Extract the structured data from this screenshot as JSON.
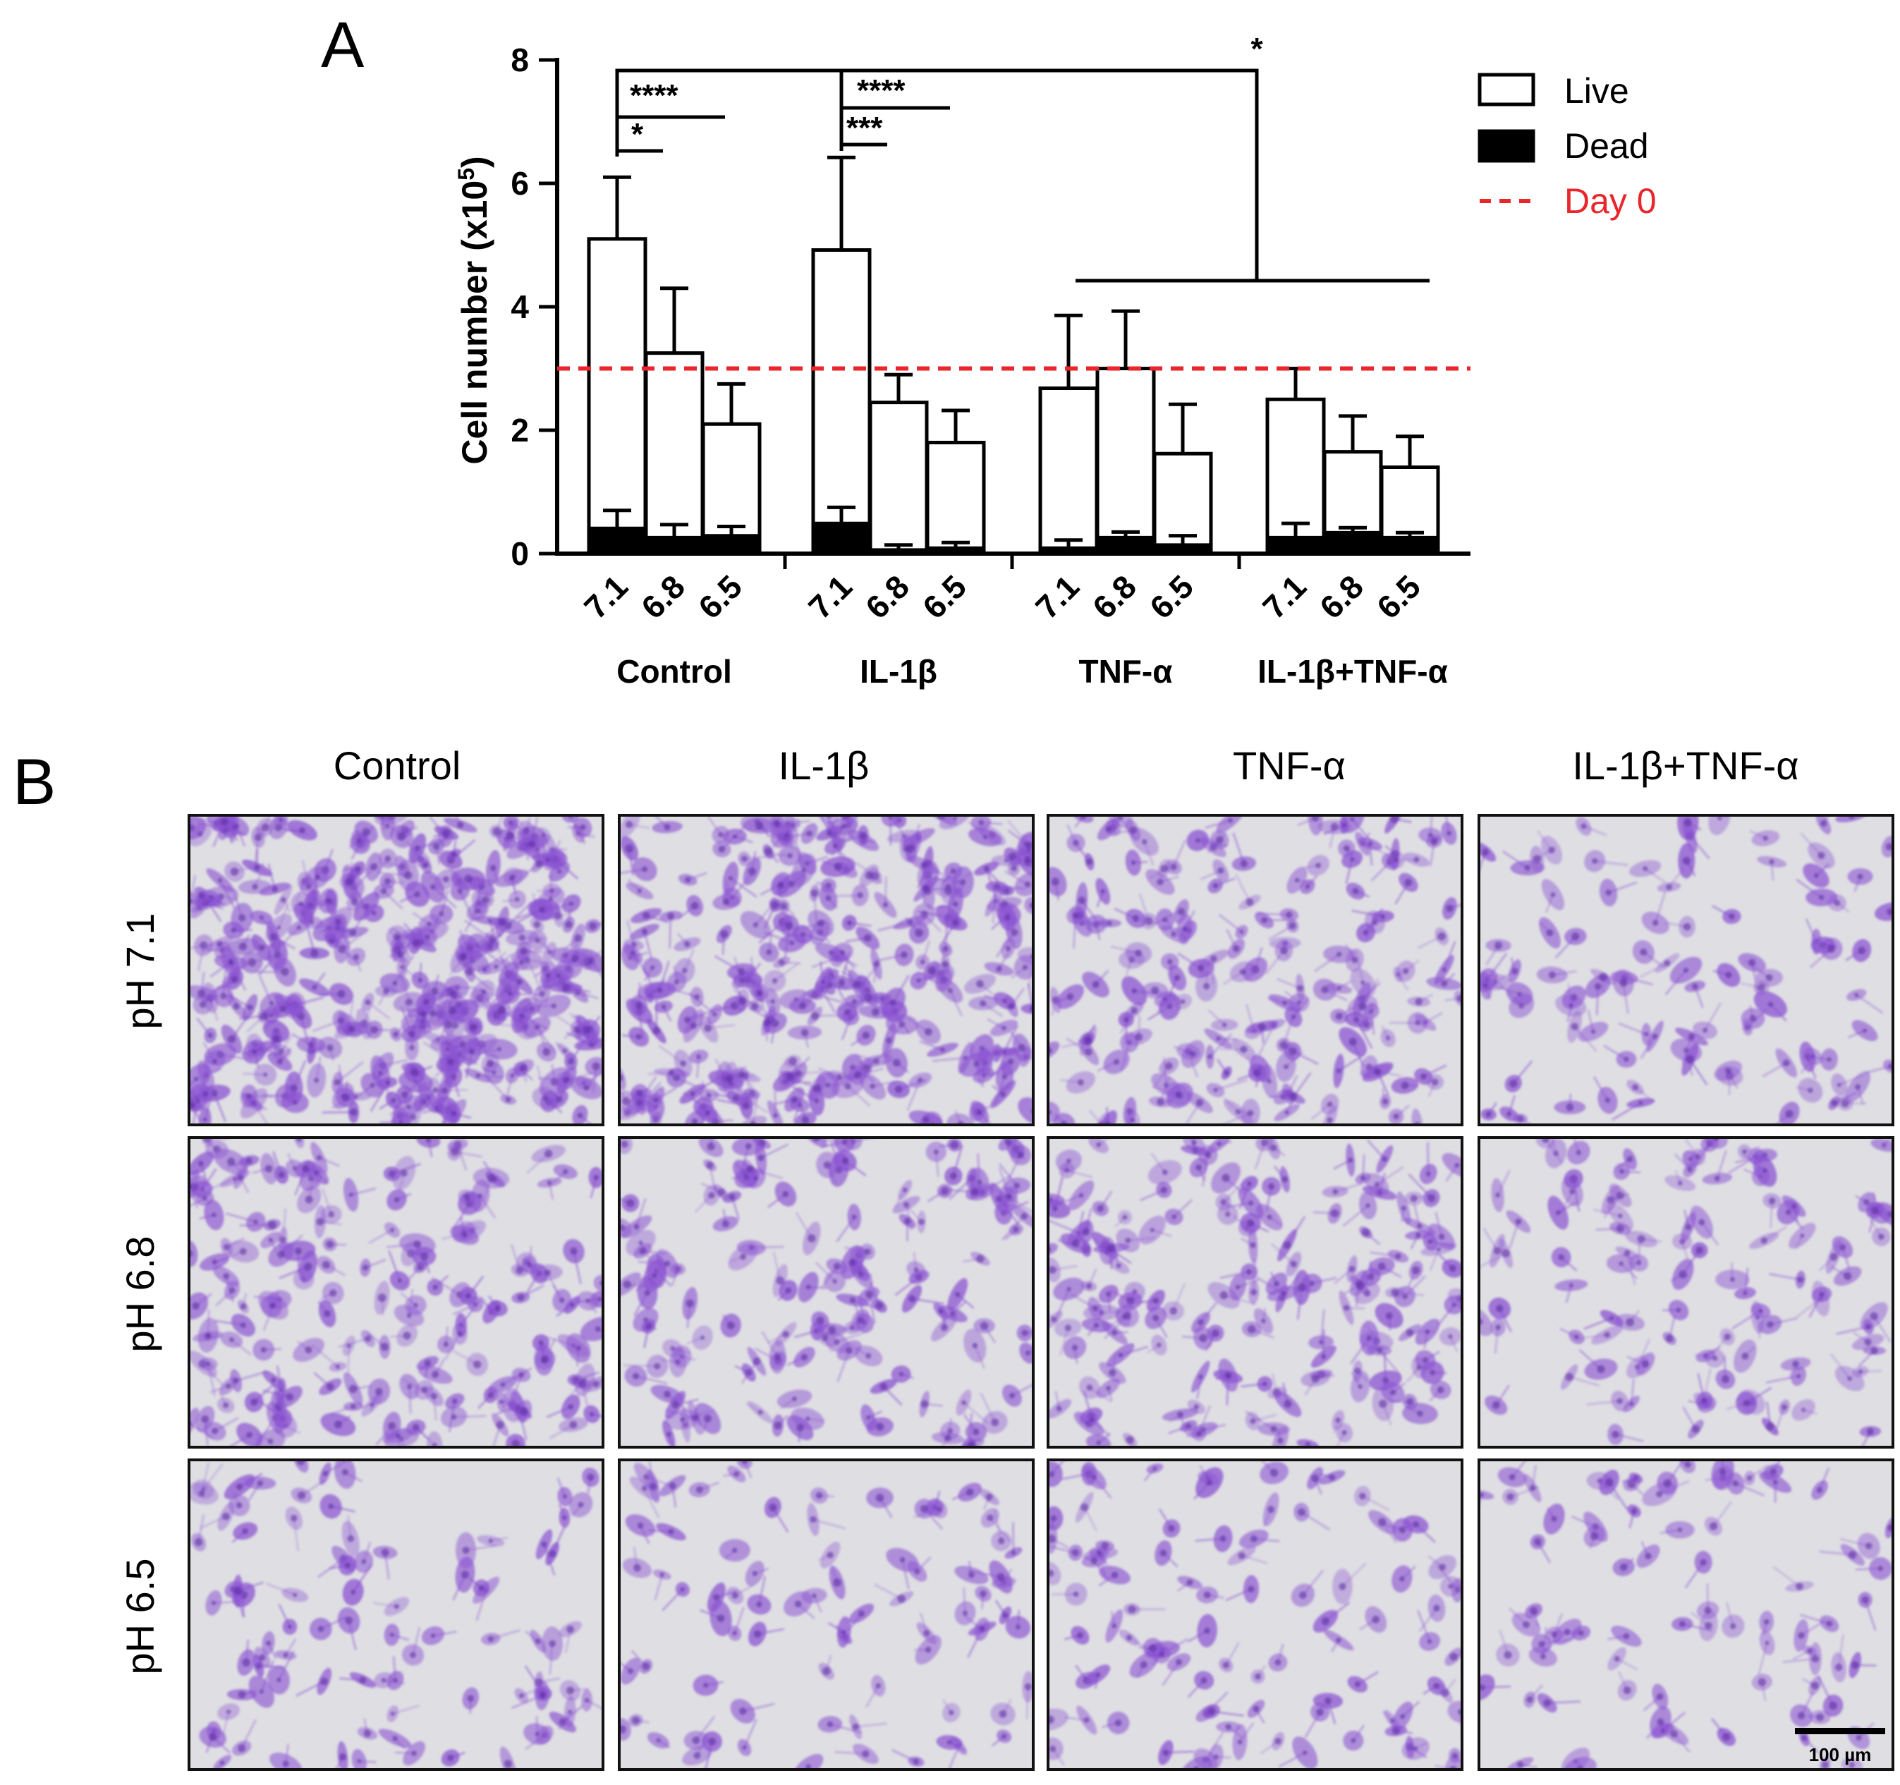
{
  "panel_a": {
    "letter": "A",
    "chart_data": {
      "type": "bar",
      "ylabel": "Cell number (x10",
      "ylabel_sup": "5",
      "ylabel_close": ")",
      "ylim": [
        0,
        8
      ],
      "yticks": [
        "0",
        "2",
        "4",
        "6",
        "8"
      ],
      "stacked": true,
      "groups": [
        "Control",
        "IL-1β",
        "TNF-α",
        "IL-1β+TNF-α"
      ],
      "categories": [
        "7.1",
        "6.8",
        "6.5"
      ],
      "series": [
        {
          "name": "Live",
          "color": "#ffffff",
          "values": [
            [
              5.1,
              3.25,
              2.1
            ],
            [
              4.92,
              2.45,
              1.8
            ],
            [
              2.68,
              3.0,
              1.62
            ],
            [
              2.5,
              1.65,
              1.4
            ]
          ],
          "errors": [
            [
              1.0,
              1.05,
              0.65
            ],
            [
              1.5,
              0.45,
              0.52
            ],
            [
              1.18,
              0.93,
              0.8
            ],
            [
              0.5,
              0.58,
              0.5
            ]
          ]
        },
        {
          "name": "Dead",
          "color": "#000000",
          "values": [
            [
              0.42,
              0.27,
              0.3
            ],
            [
              0.5,
              0.07,
              0.1
            ],
            [
              0.1,
              0.27,
              0.15
            ],
            [
              0.27,
              0.35,
              0.27
            ]
          ],
          "errors": [
            [
              0.28,
              0.2,
              0.14
            ],
            [
              0.25,
              0.07,
              0.08
            ],
            [
              0.12,
              0.08,
              0.14
            ],
            [
              0.22,
              0.07,
              0.07
            ]
          ]
        }
      ],
      "reference_line": {
        "name": "Day 0",
        "value": 3.0,
        "color": "#e8262b",
        "style": "dashed"
      },
      "significance": [
        {
          "label": "*",
          "from": "Control 7.1",
          "to": "Control 6.5"
        },
        {
          "label": "****",
          "from": "Control 7.1",
          "to": "Control 6.8"
        },
        {
          "label": "***",
          "from": "IL-1β 7.1",
          "to": "IL-1β 6.5"
        },
        {
          "label": "****",
          "from": "IL-1β 7.1",
          "to": "IL-1β 6.8"
        },
        {
          "label": "*",
          "from": "Control 7.1 / IL-1β 7.1",
          "to": "TNF-α + IL-1β+TNF-α"
        }
      ],
      "legend_position": "top-right"
    }
  },
  "panel_b": {
    "letter": "B",
    "columns": [
      "Control",
      "IL-1β",
      "TNF-α",
      "IL-1β+TNF-α"
    ],
    "rows": [
      "pH 7.1",
      "pH 6.8",
      "pH 6.5"
    ],
    "cell_density": [
      [
        1.0,
        0.75,
        0.45,
        0.22
      ],
      [
        0.45,
        0.35,
        0.42,
        0.25
      ],
      [
        0.2,
        0.18,
        0.22,
        0.18
      ]
    ],
    "stain_color": "#8a52d2",
    "background_color": "#dfdfe3",
    "scale_bar": "100 µm"
  }
}
